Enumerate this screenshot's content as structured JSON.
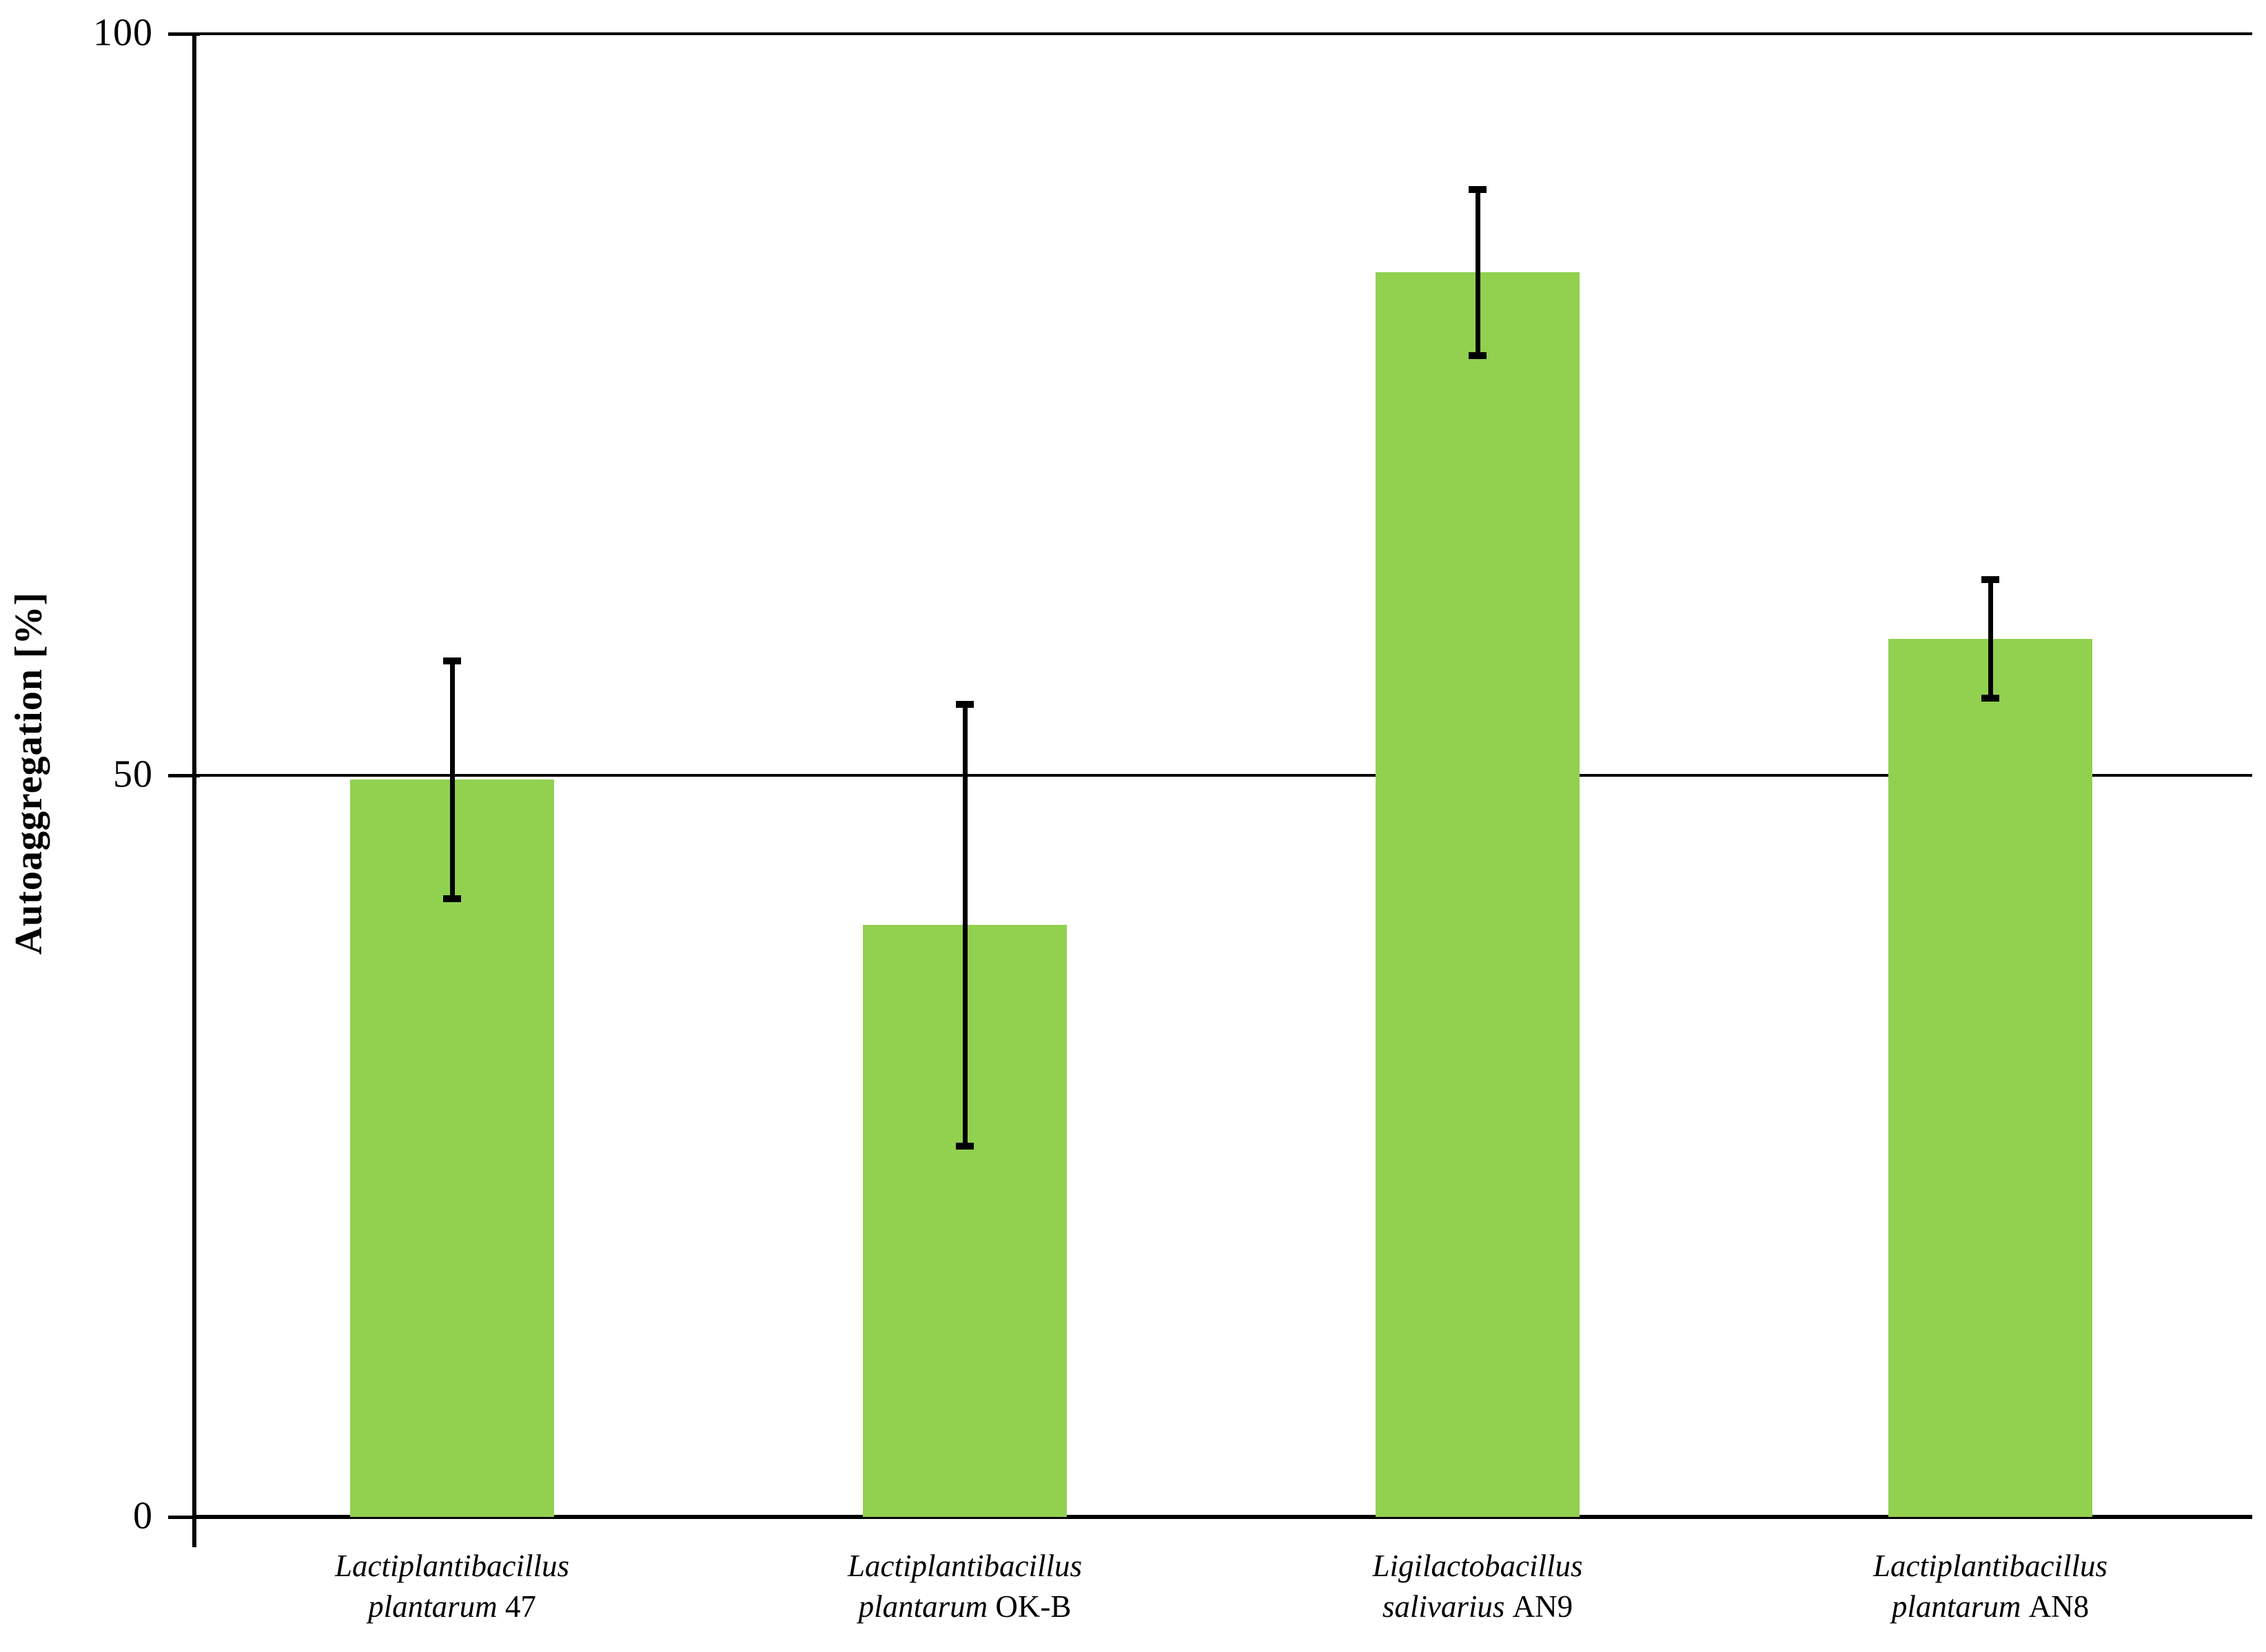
{
  "figure": {
    "background_color": "#ffffff"
  },
  "chart_data": {
    "type": "bar",
    "title": "",
    "xlabel": "",
    "ylabel": "Autoaggregation [%]",
    "ylim": [
      0,
      100
    ],
    "yticks": [
      0,
      50,
      100
    ],
    "grid": "horizontal gridlines at 0, 50 and 100 spanning full plot width",
    "legend_position": "none",
    "bar_color": "#92D050",
    "error_bar_color": "#000000",
    "axis_color": "#000000",
    "category_labels": [
      "Lactiplantibacillus plantarum 47",
      "Lactiplantibacillus plantarum OK-B",
      "Ligilactobacillus salivarius AN9",
      "Lactiplantibacillus plantarum AN8"
    ],
    "categories": [
      {
        "genus": "Lactiplantibacillus",
        "species": "plantarum",
        "strain": "47"
      },
      {
        "genus": "Lactiplantibacillus",
        "species": "plantarum",
        "strain": "OK-B"
      },
      {
        "genus": "Ligilactobacillus",
        "species": "salivarius",
        "strain": "AN9"
      },
      {
        "genus": "Lactiplantibacillus",
        "species": "plantarum",
        "strain": "AN8"
      }
    ],
    "values": [
      49.7,
      39.9,
      83.9,
      59.2
    ],
    "errors": [
      8.0,
      14.9,
      5.6,
      4.0
    ]
  }
}
